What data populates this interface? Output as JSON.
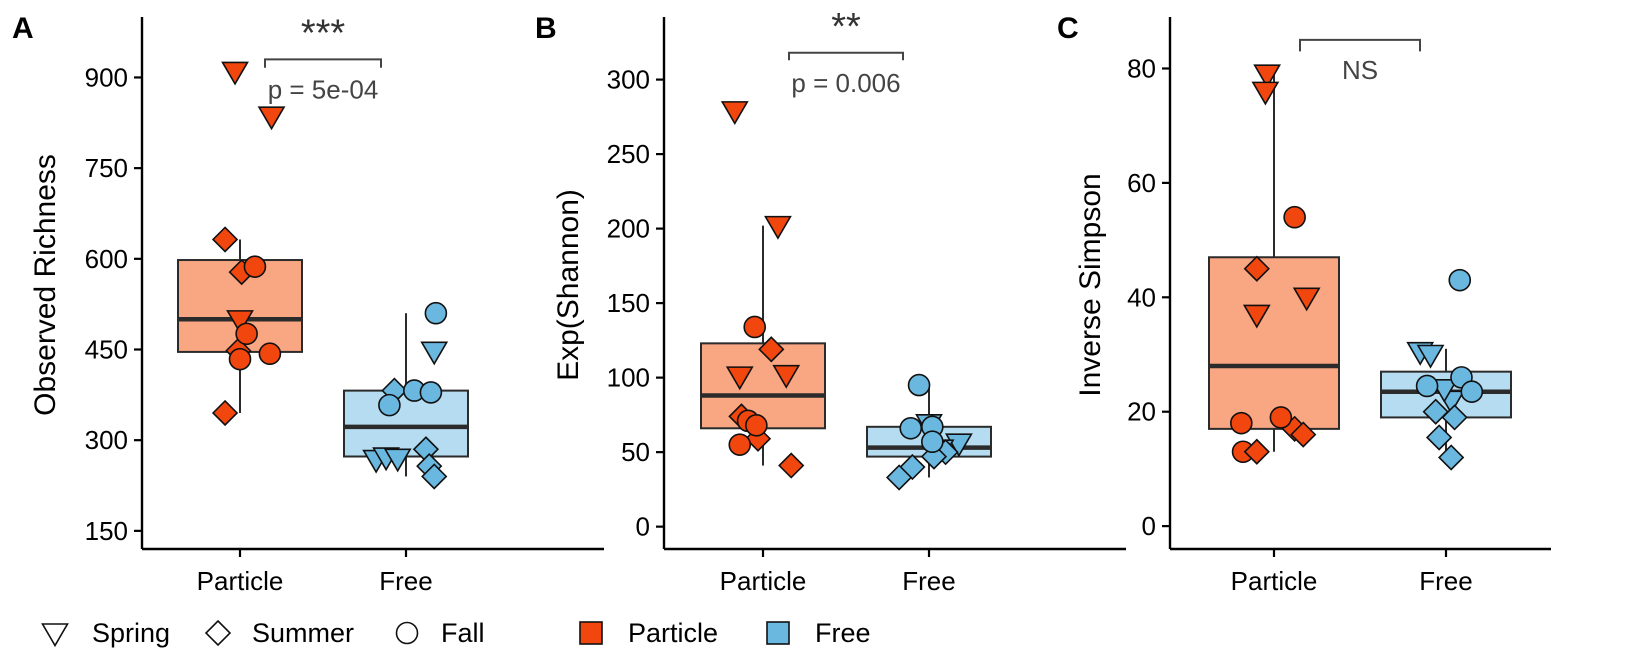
{
  "chart_data": [
    {
      "panel": "A",
      "type": "box",
      "ylabel": "Observed Richness",
      "ylim": [
        120,
        1000
      ],
      "yticks": [
        150,
        300,
        450,
        600,
        750,
        900
      ],
      "categories": [
        "Particle",
        "Free"
      ],
      "boxes": [
        {
          "group": "Particle",
          "q1": 446,
          "median": 500,
          "q3": 598,
          "whisker_low": 345,
          "whisker_high": 632
        },
        {
          "group": "Free",
          "q1": 273,
          "median": 322,
          "q3": 382,
          "whisker_low": 240,
          "whisker_high": 510
        }
      ],
      "points": [
        {
          "group": "Particle",
          "season": "Spring",
          "y": 910,
          "dx": -0.03
        },
        {
          "group": "Particle",
          "season": "Spring",
          "y": 836,
          "dx": 0.19
        },
        {
          "group": "Particle",
          "season": "Spring",
          "y": 499,
          "dx": 0.0
        },
        {
          "group": "Particle",
          "season": "Summer",
          "y": 632,
          "dx": -0.09
        },
        {
          "group": "Particle",
          "season": "Summer",
          "y": 578,
          "dx": 0.01
        },
        {
          "group": "Particle",
          "season": "Summer",
          "y": 448,
          "dx": -0.01
        },
        {
          "group": "Particle",
          "season": "Summer",
          "y": 345,
          "dx": -0.09
        },
        {
          "group": "Particle",
          "season": "Fall",
          "y": 587,
          "dx": 0.09
        },
        {
          "group": "Particle",
          "season": "Fall",
          "y": 476,
          "dx": 0.04
        },
        {
          "group": "Particle",
          "season": "Fall",
          "y": 434,
          "dx": 0.0
        },
        {
          "group": "Particle",
          "season": "Fall",
          "y": 443,
          "dx": 0.18
        },
        {
          "group": "Free",
          "season": "Spring",
          "y": 447,
          "dx": 0.17
        },
        {
          "group": "Free",
          "season": "Spring",
          "y": 268,
          "dx": -0.18
        },
        {
          "group": "Free",
          "season": "Spring",
          "y": 272,
          "dx": -0.12
        },
        {
          "group": "Free",
          "season": "Spring",
          "y": 270,
          "dx": -0.05
        },
        {
          "group": "Free",
          "season": "Summer",
          "y": 382,
          "dx": -0.07
        },
        {
          "group": "Free",
          "season": "Summer",
          "y": 285,
          "dx": 0.12
        },
        {
          "group": "Free",
          "season": "Summer",
          "y": 257,
          "dx": 0.14
        },
        {
          "group": "Free",
          "season": "Summer",
          "y": 240,
          "dx": 0.17
        },
        {
          "group": "Free",
          "season": "Fall",
          "y": 510,
          "dx": 0.18
        },
        {
          "group": "Free",
          "season": "Fall",
          "y": 382,
          "dx": 0.05
        },
        {
          "group": "Free",
          "season": "Fall",
          "y": 379,
          "dx": 0.15
        },
        {
          "group": "Free",
          "season": "Fall",
          "y": 358,
          "dx": -0.1
        }
      ],
      "significance": {
        "stars": "***",
        "p_text": "p = 5e-04",
        "y": 930,
        "drop": 14
      }
    },
    {
      "panel": "B",
      "type": "box",
      "ylabel": "Exp(Shannon)",
      "ylim": [
        -15,
        342
      ],
      "yticks": [
        0,
        50,
        100,
        150,
        200,
        250,
        300
      ],
      "categories": [
        "Particle",
        "Free"
      ],
      "boxes": [
        {
          "group": "Particle",
          "q1": 66,
          "median": 88,
          "q3": 123,
          "whisker_low": 41,
          "whisker_high": 202
        },
        {
          "group": "Free",
          "q1": 47,
          "median": 53,
          "q3": 67,
          "whisker_low": 33,
          "whisker_high": 95
        }
      ],
      "points": [
        {
          "group": "Particle",
          "season": "Spring",
          "y": 279,
          "dx": -0.17
        },
        {
          "group": "Particle",
          "season": "Spring",
          "y": 202,
          "dx": 0.09
        },
        {
          "group": "Particle",
          "season": "Spring",
          "y": 101,
          "dx": -0.14
        },
        {
          "group": "Particle",
          "season": "Spring",
          "y": 102,
          "dx": 0.14
        },
        {
          "group": "Particle",
          "season": "Summer",
          "y": 119,
          "dx": 0.05
        },
        {
          "group": "Particle",
          "season": "Summer",
          "y": 74,
          "dx": -0.13
        },
        {
          "group": "Particle",
          "season": "Summer",
          "y": 59,
          "dx": -0.03
        },
        {
          "group": "Particle",
          "season": "Summer",
          "y": 41,
          "dx": 0.17
        },
        {
          "group": "Particle",
          "season": "Fall",
          "y": 134,
          "dx": -0.05
        },
        {
          "group": "Particle",
          "season": "Fall",
          "y": 71,
          "dx": -0.09
        },
        {
          "group": "Particle",
          "season": "Fall",
          "y": 68,
          "dx": -0.04
        },
        {
          "group": "Particle",
          "season": "Fall",
          "y": 55,
          "dx": -0.14
        },
        {
          "group": "Free",
          "season": "Spring",
          "y": 69,
          "dx": 0.0
        },
        {
          "group": "Free",
          "season": "Spring",
          "y": 56,
          "dx": 0.18
        },
        {
          "group": "Free",
          "season": "Spring",
          "y": 52,
          "dx": 0.07
        },
        {
          "group": "Free",
          "season": "Summer",
          "y": 50,
          "dx": 0.1
        },
        {
          "group": "Free",
          "season": "Summer",
          "y": 47,
          "dx": 0.03
        },
        {
          "group": "Free",
          "season": "Summer",
          "y": 40,
          "dx": -0.1
        },
        {
          "group": "Free",
          "season": "Summer",
          "y": 33,
          "dx": -0.18
        },
        {
          "group": "Free",
          "season": "Fall",
          "y": 95,
          "dx": -0.06
        },
        {
          "group": "Free",
          "season": "Fall",
          "y": 67,
          "dx": 0.02
        },
        {
          "group": "Free",
          "season": "Fall",
          "y": 66,
          "dx": -0.11
        },
        {
          "group": "Free",
          "season": "Fall",
          "y": 57,
          "dx": 0.02
        }
      ],
      "significance": {
        "stars": "**",
        "p_text": "p = 0.006",
        "y": 318,
        "drop": 5
      }
    },
    {
      "panel": "C",
      "type": "box",
      "ylabel": "Inverse Simpson",
      "ylim": [
        -4,
        89
      ],
      "yticks": [
        0,
        20,
        40,
        60,
        80
      ],
      "categories": [
        "Particle",
        "Free"
      ],
      "boxes": [
        {
          "group": "Particle",
          "q1": 17,
          "median": 28,
          "q3": 47,
          "whisker_low": 13,
          "whisker_high": 79
        },
        {
          "group": "Free",
          "q1": 19,
          "median": 23.5,
          "q3": 27,
          "whisker_low": 12,
          "whisker_high": 31
        }
      ],
      "points": [
        {
          "group": "Particle",
          "season": "Spring",
          "y": 79,
          "dx": -0.04
        },
        {
          "group": "Particle",
          "season": "Spring",
          "y": 76,
          "dx": -0.05
        },
        {
          "group": "Particle",
          "season": "Spring",
          "y": 40,
          "dx": 0.19
        },
        {
          "group": "Particle",
          "season": "Spring",
          "y": 37,
          "dx": -0.1
        },
        {
          "group": "Particle",
          "season": "Summer",
          "y": 45,
          "dx": -0.1
        },
        {
          "group": "Particle",
          "season": "Summer",
          "y": 17,
          "dx": 0.12
        },
        {
          "group": "Particle",
          "season": "Summer",
          "y": 16,
          "dx": 0.17
        },
        {
          "group": "Particle",
          "season": "Fall",
          "y": 54,
          "dx": 0.12
        },
        {
          "group": "Particle",
          "season": "Fall",
          "y": 19,
          "dx": 0.04
        },
        {
          "group": "Particle",
          "season": "Fall",
          "y": 18,
          "dx": -0.19
        },
        {
          "group": "Particle",
          "season": "Fall",
          "y": 13,
          "dx": -0.18
        },
        {
          "group": "Particle",
          "season": "Summer",
          "y": 13,
          "dx": -0.1
        },
        {
          "group": "Free",
          "season": "Spring",
          "y": 30.5,
          "dx": -0.15
        },
        {
          "group": "Free",
          "season": "Spring",
          "y": 30,
          "dx": -0.09
        },
        {
          "group": "Free",
          "season": "Spring",
          "y": 22,
          "dx": 0.03
        },
        {
          "group": "Free",
          "season": "Spring",
          "y": 24,
          "dx": -0.01
        },
        {
          "group": "Free",
          "season": "Summer",
          "y": 19,
          "dx": 0.05
        },
        {
          "group": "Free",
          "season": "Summer",
          "y": 15.5,
          "dx": -0.04
        },
        {
          "group": "Free",
          "season": "Summer",
          "y": 12,
          "dx": 0.03
        },
        {
          "group": "Free",
          "season": "Summer",
          "y": 20,
          "dx": -0.06
        },
        {
          "group": "Free",
          "season": "Fall",
          "y": 43,
          "dx": 0.08
        },
        {
          "group": "Free",
          "season": "Fall",
          "y": 26,
          "dx": 0.09
        },
        {
          "group": "Free",
          "season": "Fall",
          "y": 24.5,
          "dx": -0.11
        },
        {
          "group": "Free",
          "season": "Fall",
          "y": 23.5,
          "dx": 0.15
        }
      ],
      "significance": {
        "stars": "",
        "p_text": "NS",
        "y": 85,
        "drop": 2
      }
    }
  ],
  "legend": {
    "shapes": [
      {
        "label": "Spring",
        "shape": "triangle-down"
      },
      {
        "label": "Summer",
        "shape": "diamond"
      },
      {
        "label": "Fall",
        "shape": "circle"
      }
    ],
    "fills": [
      {
        "label": "Particle",
        "color": "#f2460f"
      },
      {
        "label": "Free",
        "color": "#6ab8e0"
      }
    ]
  },
  "colors": {
    "particle_point": "#f2460f",
    "particle_box": "#f9a683",
    "free_point": "#6ab8e0",
    "free_box": "#b6dcf1",
    "axis": "#000000",
    "box_line": "#2b2b2b",
    "sig_text": "#444444"
  }
}
